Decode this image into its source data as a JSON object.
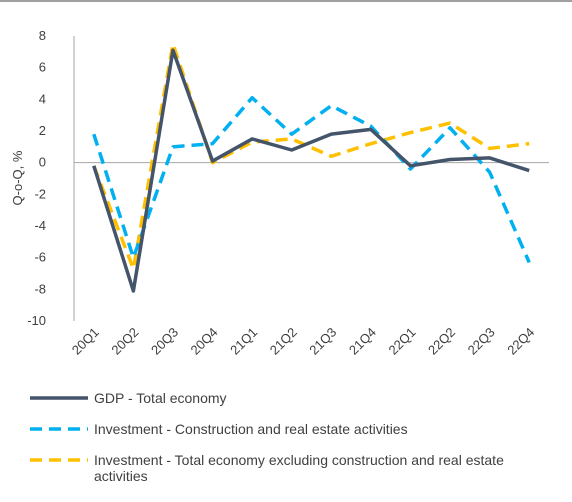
{
  "chart_data": {
    "type": "line",
    "ylabel": "Q-o-Q, %",
    "categories": [
      "20Q1",
      "20Q2",
      "20Q3",
      "20Q4",
      "21Q1",
      "21Q2",
      "21Q3",
      "21Q4",
      "22Q1",
      "22Q2",
      "22Q3",
      "22Q4"
    ],
    "series": [
      {
        "name": "GDP - Total economy",
        "color": "#44546a",
        "dash": false,
        "values": [
          -0.2,
          -8.1,
          7.1,
          0.1,
          1.5,
          0.8,
          1.8,
          2.1,
          -0.2,
          0.2,
          0.3,
          -0.5
        ]
      },
      {
        "name": "Investment - Construction and real estate activities",
        "color": "#00b0f0",
        "dash": true,
        "values": [
          1.8,
          -6.0,
          1.0,
          1.2,
          4.1,
          1.8,
          3.6,
          2.3,
          -0.4,
          2.2,
          -0.6,
          -6.3
        ]
      },
      {
        "name": "Investment - Total economy excluding construction and real estate activities",
        "color": "#ffc000",
        "dash": true,
        "values": [
          -0.2,
          -6.7,
          7.5,
          0.0,
          1.3,
          1.5,
          0.4,
          1.2,
          1.9,
          2.5,
          0.9,
          1.2
        ]
      }
    ],
    "ylim": [
      -10,
      8
    ],
    "yticks": [
      -10,
      -8,
      -6,
      -4,
      -2,
      0,
      2,
      4,
      6,
      8
    ]
  }
}
